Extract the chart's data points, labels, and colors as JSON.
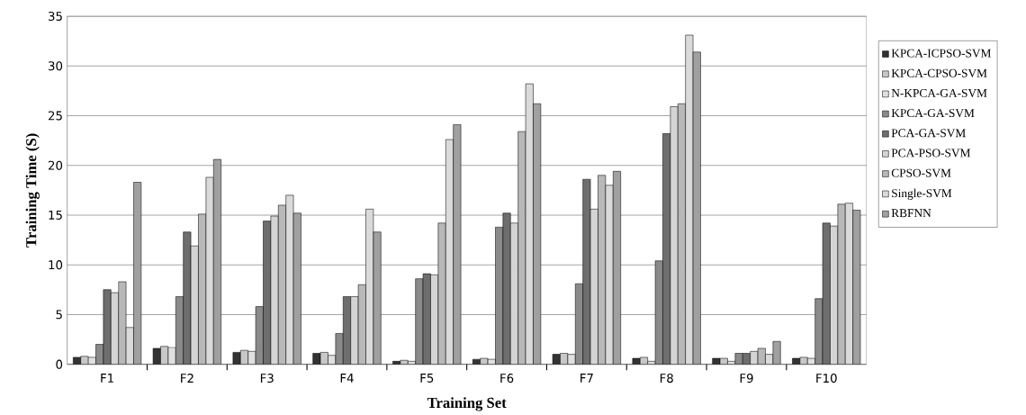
{
  "chart_data": {
    "type": "bar",
    "xlabel": "Training Set",
    "ylabel": "Training Time (S)",
    "categories": [
      "F1",
      "F2",
      "F3",
      "F4",
      "F5",
      "F6",
      "F7",
      "F8",
      "F9",
      "F10"
    ],
    "ylim": [
      0,
      35
    ],
    "yticks": [
      0,
      5,
      10,
      15,
      20,
      25,
      30,
      35
    ],
    "grid": "y",
    "legend": "right",
    "series": [
      {
        "name": "KPCA-ICPSO-SVM",
        "color": "#333333",
        "values": [
          0.7,
          1.6,
          1.2,
          1.1,
          0.3,
          0.5,
          1.0,
          0.6,
          0.6,
          0.6
        ]
      },
      {
        "name": "KPCA-CPSO-SVM",
        "color": "#c8c8c8",
        "values": [
          0.8,
          1.8,
          1.4,
          1.2,
          0.4,
          0.6,
          1.1,
          0.7,
          0.6,
          0.7
        ]
      },
      {
        "name": "N-KPCA-GA-SVM",
        "color": "#e0e0e0",
        "values": [
          0.7,
          1.7,
          1.3,
          0.9,
          0.3,
          0.5,
          1.0,
          0.3,
          0.3,
          0.6
        ]
      },
      {
        "name": "KPCA-GA-SVM",
        "color": "#8a8a8a",
        "values": [
          2.0,
          6.8,
          5.8,
          3.1,
          8.6,
          13.8,
          8.1,
          10.4,
          1.1,
          6.6
        ]
      },
      {
        "name": "PCA-GA-SVM",
        "color": "#6e6e6e",
        "values": [
          7.5,
          13.3,
          14.4,
          6.8,
          9.1,
          15.2,
          18.6,
          23.2,
          1.1,
          14.2
        ]
      },
      {
        "name": "PCA-PSO-SVM",
        "color": "#d4d4d4",
        "values": [
          7.2,
          11.9,
          14.9,
          6.8,
          9.0,
          14.2,
          15.6,
          25.9,
          1.3,
          13.9
        ]
      },
      {
        "name": "CPSO-SVM",
        "color": "#b8b8b8",
        "values": [
          8.3,
          15.1,
          16.0,
          8.0,
          14.2,
          23.4,
          19.0,
          26.2,
          1.6,
          16.1
        ]
      },
      {
        "name": "Single-SVM",
        "color": "#dadada",
        "values": [
          3.7,
          18.8,
          17.0,
          15.6,
          22.6,
          28.2,
          18.0,
          33.1,
          1.0,
          16.2
        ]
      },
      {
        "name": "RBFNN",
        "color": "#a0a0a0",
        "values": [
          18.3,
          20.6,
          15.2,
          13.3,
          24.1,
          26.2,
          19.4,
          31.4,
          2.3,
          15.5
        ]
      }
    ]
  }
}
